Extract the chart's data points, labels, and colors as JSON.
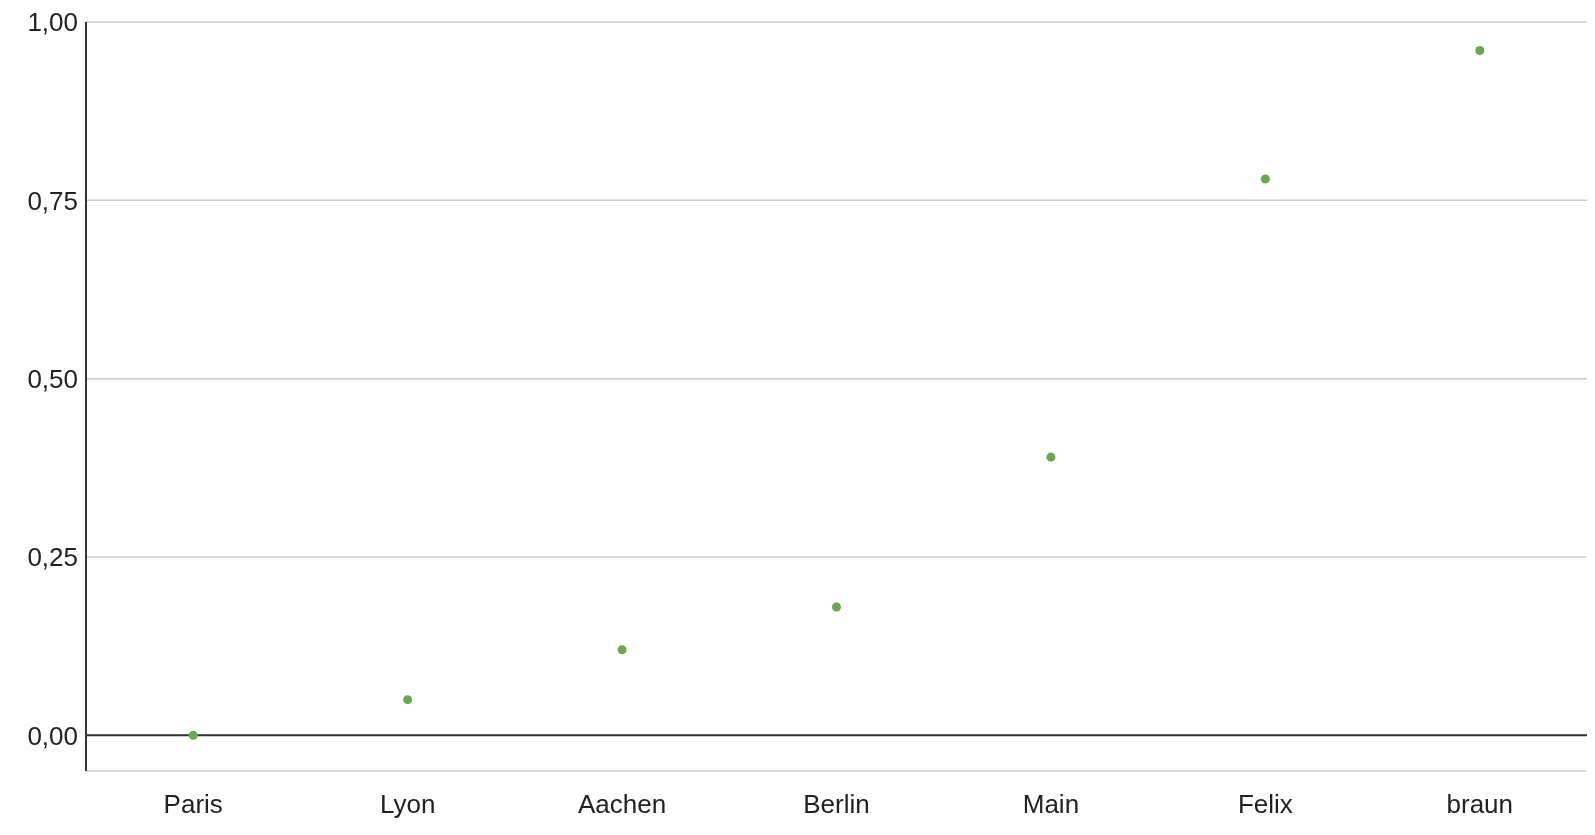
{
  "chart_data": {
    "type": "scatter",
    "categories": [
      "Paris",
      "Lyon",
      "Aachen",
      "Berlin",
      "Main",
      "Felix",
      "braun"
    ],
    "values": [
      0.0,
      0.05,
      0.12,
      0.18,
      0.39,
      0.78,
      0.96
    ],
    "color": "#6aa84f",
    "marker": "circle",
    "ylim": [
      -0.05,
      1
    ],
    "yticks": [
      {
        "value": 0,
        "label": "0,00"
      },
      {
        "value": 0.25,
        "label": "0,25"
      },
      {
        "value": 0.5,
        "label": "0,50"
      },
      {
        "value": 0.75,
        "label": "0,75"
      },
      {
        "value": 1,
        "label": "1,00"
      }
    ],
    "grid": "y",
    "ref_lines": [
      {
        "axis": "y",
        "value": 0,
        "color": "#333333"
      }
    ]
  }
}
